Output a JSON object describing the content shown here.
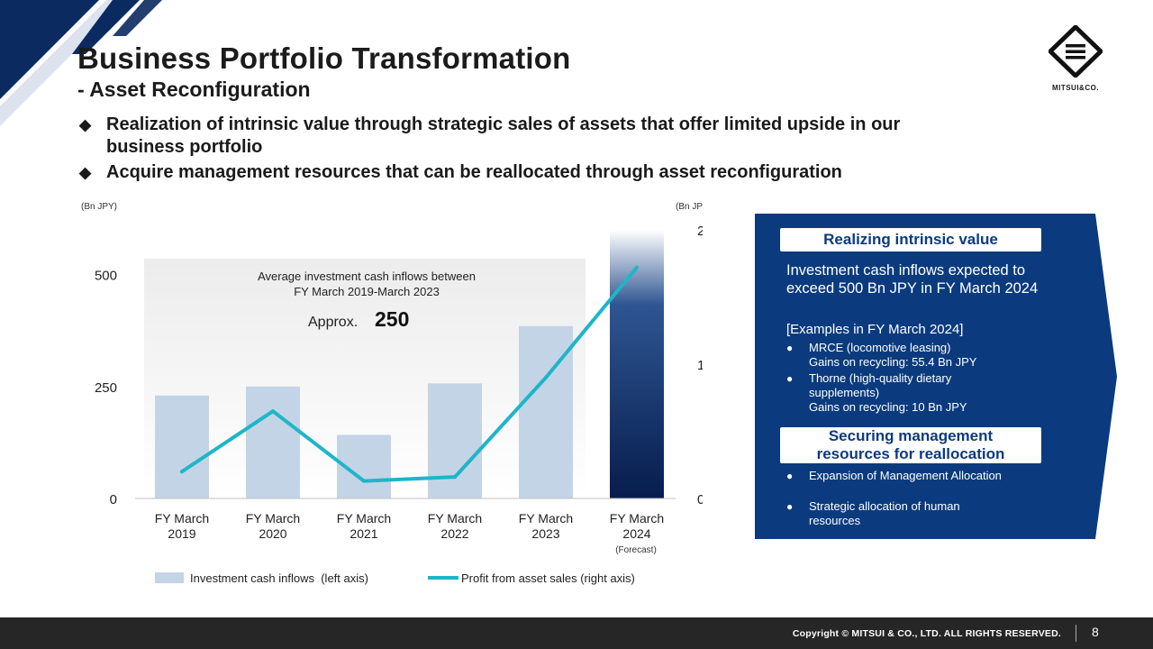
{
  "header": {
    "title": "Business Portfolio Transformation",
    "subtitle": "- Asset Reconfiguration"
  },
  "logo": {
    "text": "MITSUI&CO."
  },
  "bullets": [
    "Realization of intrinsic value through strategic sales of assets that offer limited upside in our business portfolio",
    "Acquire management resources that can be reallocated through asset reconfiguration"
  ],
  "bullet_mark": "◆",
  "chart_data": {
    "type": "bar",
    "categories": [
      [
        "FY March",
        "2019"
      ],
      [
        "FY March",
        "2020"
      ],
      [
        "FY March",
        "2021"
      ],
      [
        "FY March",
        "2022"
      ],
      [
        "FY March",
        "2023"
      ],
      [
        "FY March",
        "2024"
      ]
    ],
    "forecast_note": "(Forecast)",
    "left_unit": "(Bn JPY)",
    "right_unit": "(Bn JPY)",
    "left_axis": {
      "ylim": [
        0,
        600
      ],
      "ticks": [
        "0",
        "250",
        "500"
      ],
      "tick_values": [
        0,
        250,
        500
      ]
    },
    "right_axis": {
      "ylim": [
        0,
        200
      ],
      "ticks": [
        "0",
        "100",
        "200"
      ],
      "tick_values": [
        0,
        100,
        200
      ]
    },
    "series": [
      {
        "name": "Investment cash inflows  (left axis)",
        "type": "bar",
        "axis": "left",
        "values": [
          230,
          250,
          142,
          257,
          385,
          600
        ],
        "color": "#c3d4e6",
        "highlight_color": "#0a2a63"
      },
      {
        "name": "Profit from asset sales (right axis)",
        "type": "line",
        "axis": "right",
        "values": [
          20,
          65,
          13,
          16,
          90,
          172
        ],
        "color": "#1fb5c9"
      }
    ],
    "annotation": {
      "line1": "Average investment cash inflows between",
      "line2": "FY March 2019-March 2023",
      "prefix": "Approx.",
      "value": "250"
    },
    "grid": false,
    "legend": "bottom"
  },
  "panel": {
    "head1": "Realizing intrinsic value",
    "big_text": "Investment cash inflows expected to exceed 500 Bn JPY in FY March 2024",
    "examples_title": "[Examples in FY March 2024]",
    "items1": [
      {
        "main": "MRCE (locomotive leasing)",
        "sub": "Gains on recycling: 55.4 Bn JPY"
      },
      {
        "main": "Thorne (high-quality dietary supplements)",
        "sub": "Gains on recycling: 10 Bn JPY"
      }
    ],
    "head2_line1": "Securing management",
    "head2_line2": "resources for reallocation",
    "items2": [
      "Expansion of Management Allocation",
      "Strategic allocation of human resources"
    ],
    "dot": "●",
    "colors": {
      "panel": "#0b3b7e",
      "accent": "#1fb5c9"
    }
  },
  "footer": {
    "copyright": "Copyright © MITSUI & CO., LTD. ALL RIGHTS RESERVED.",
    "page": "8"
  }
}
